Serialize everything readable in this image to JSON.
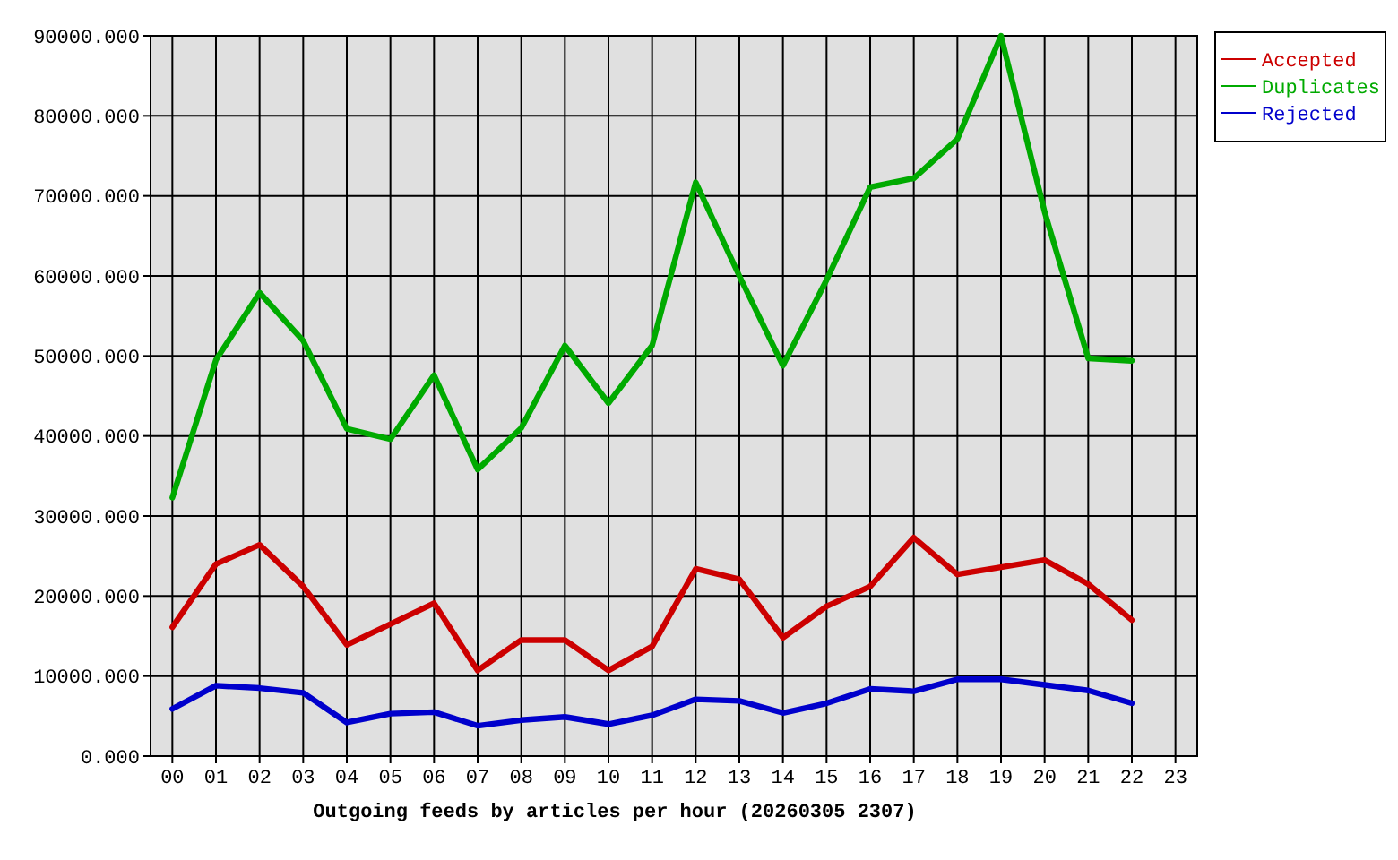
{
  "chart_data": {
    "type": "line",
    "xlabel": "Outgoing feeds by articles per hour (20260305 2307)",
    "categories": [
      "00",
      "01",
      "02",
      "03",
      "04",
      "05",
      "06",
      "07",
      "08",
      "09",
      "10",
      "11",
      "12",
      "13",
      "14",
      "15",
      "16",
      "17",
      "18",
      "19",
      "20",
      "21",
      "22",
      "23"
    ],
    "series": [
      {
        "name": "Accepted",
        "color": "#cc0000",
        "values": [
          16100,
          24000,
          26400,
          21200,
          13900,
          16500,
          19100,
          10700,
          14500,
          14500,
          10700,
          13700,
          23400,
          22100,
          14800,
          18700,
          21200,
          27300,
          22700,
          23600,
          24500,
          21500,
          17000,
          null
        ]
      },
      {
        "name": "Duplicates",
        "color": "#00aa00",
        "values": [
          32300,
          49500,
          57900,
          51900,
          40900,
          39600,
          47600,
          35800,
          41000,
          51300,
          44100,
          51300,
          71700,
          60000,
          48800,
          59500,
          71100,
          72200,
          77100,
          90000,
          68000,
          49700,
          49400,
          null
        ]
      },
      {
        "name": "Rejected",
        "color": "#0000cc",
        "values": [
          5900,
          8800,
          8500,
          7900,
          4200,
          5300,
          5500,
          3800,
          4500,
          4900,
          4000,
          5100,
          7100,
          6900,
          5400,
          6600,
          8400,
          8100,
          9600,
          9600,
          8900,
          8200,
          6600,
          null
        ]
      }
    ],
    "ylim": [
      0,
      90000
    ],
    "yticks": [
      {
        "value": 0,
        "label": "0.000"
      },
      {
        "value": 10000,
        "label": "10000.000"
      },
      {
        "value": 20000,
        "label": "20000.000"
      },
      {
        "value": 30000,
        "label": "30000.000"
      },
      {
        "value": 40000,
        "label": "40000.000"
      },
      {
        "value": 50000,
        "label": "50000.000"
      },
      {
        "value": 60000,
        "label": "60000.000"
      },
      {
        "value": 70000,
        "label": "70000.000"
      },
      {
        "value": 80000,
        "label": "80000.000"
      },
      {
        "value": 90000,
        "label": "90000.000"
      }
    ],
    "grid": true,
    "legend": "top right",
    "line_style": "solid"
  }
}
